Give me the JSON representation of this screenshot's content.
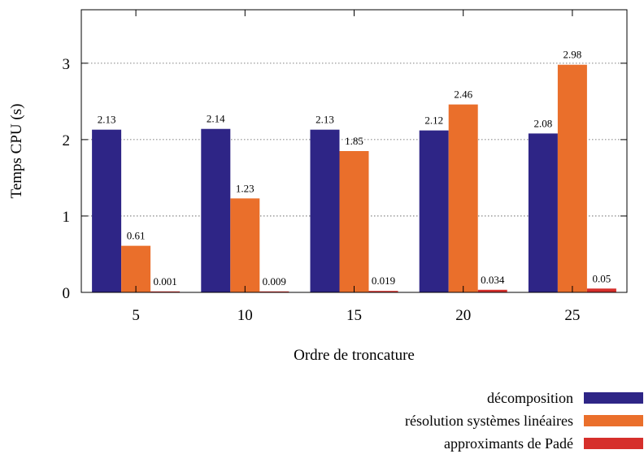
{
  "chart_data": {
    "type": "bar",
    "title": "",
    "xlabel": "Ordre de troncature",
    "ylabel": "Temps CPU (s)",
    "categories": [
      "5",
      "10",
      "15",
      "20",
      "25"
    ],
    "ylim": [
      0,
      3.7
    ],
    "yticks": [
      0,
      1,
      2,
      3
    ],
    "grid": "horizontal dotted",
    "legend_position": "bottom-right",
    "series": [
      {
        "name": "décomposition",
        "color": "#2e2586",
        "values": [
          2.13,
          2.14,
          2.13,
          2.12,
          2.08
        ],
        "labels": [
          "2.13",
          "2.14",
          "2.13",
          "2.12",
          "2.08"
        ]
      },
      {
        "name": "résolution systèmes linéaires",
        "color": "#ea6f2b",
        "values": [
          0.61,
          1.23,
          1.85,
          2.46,
          2.98
        ],
        "labels": [
          "0.61",
          "1.23",
          "1.85",
          "2.46",
          "2.98"
        ]
      },
      {
        "name": "approximants de Padé",
        "color": "#d62f2b",
        "values": [
          0.001,
          0.009,
          0.019,
          0.034,
          0.05
        ],
        "labels": [
          "0.001",
          "0.009",
          "0.019",
          "0.034",
          "0.05"
        ]
      }
    ]
  }
}
